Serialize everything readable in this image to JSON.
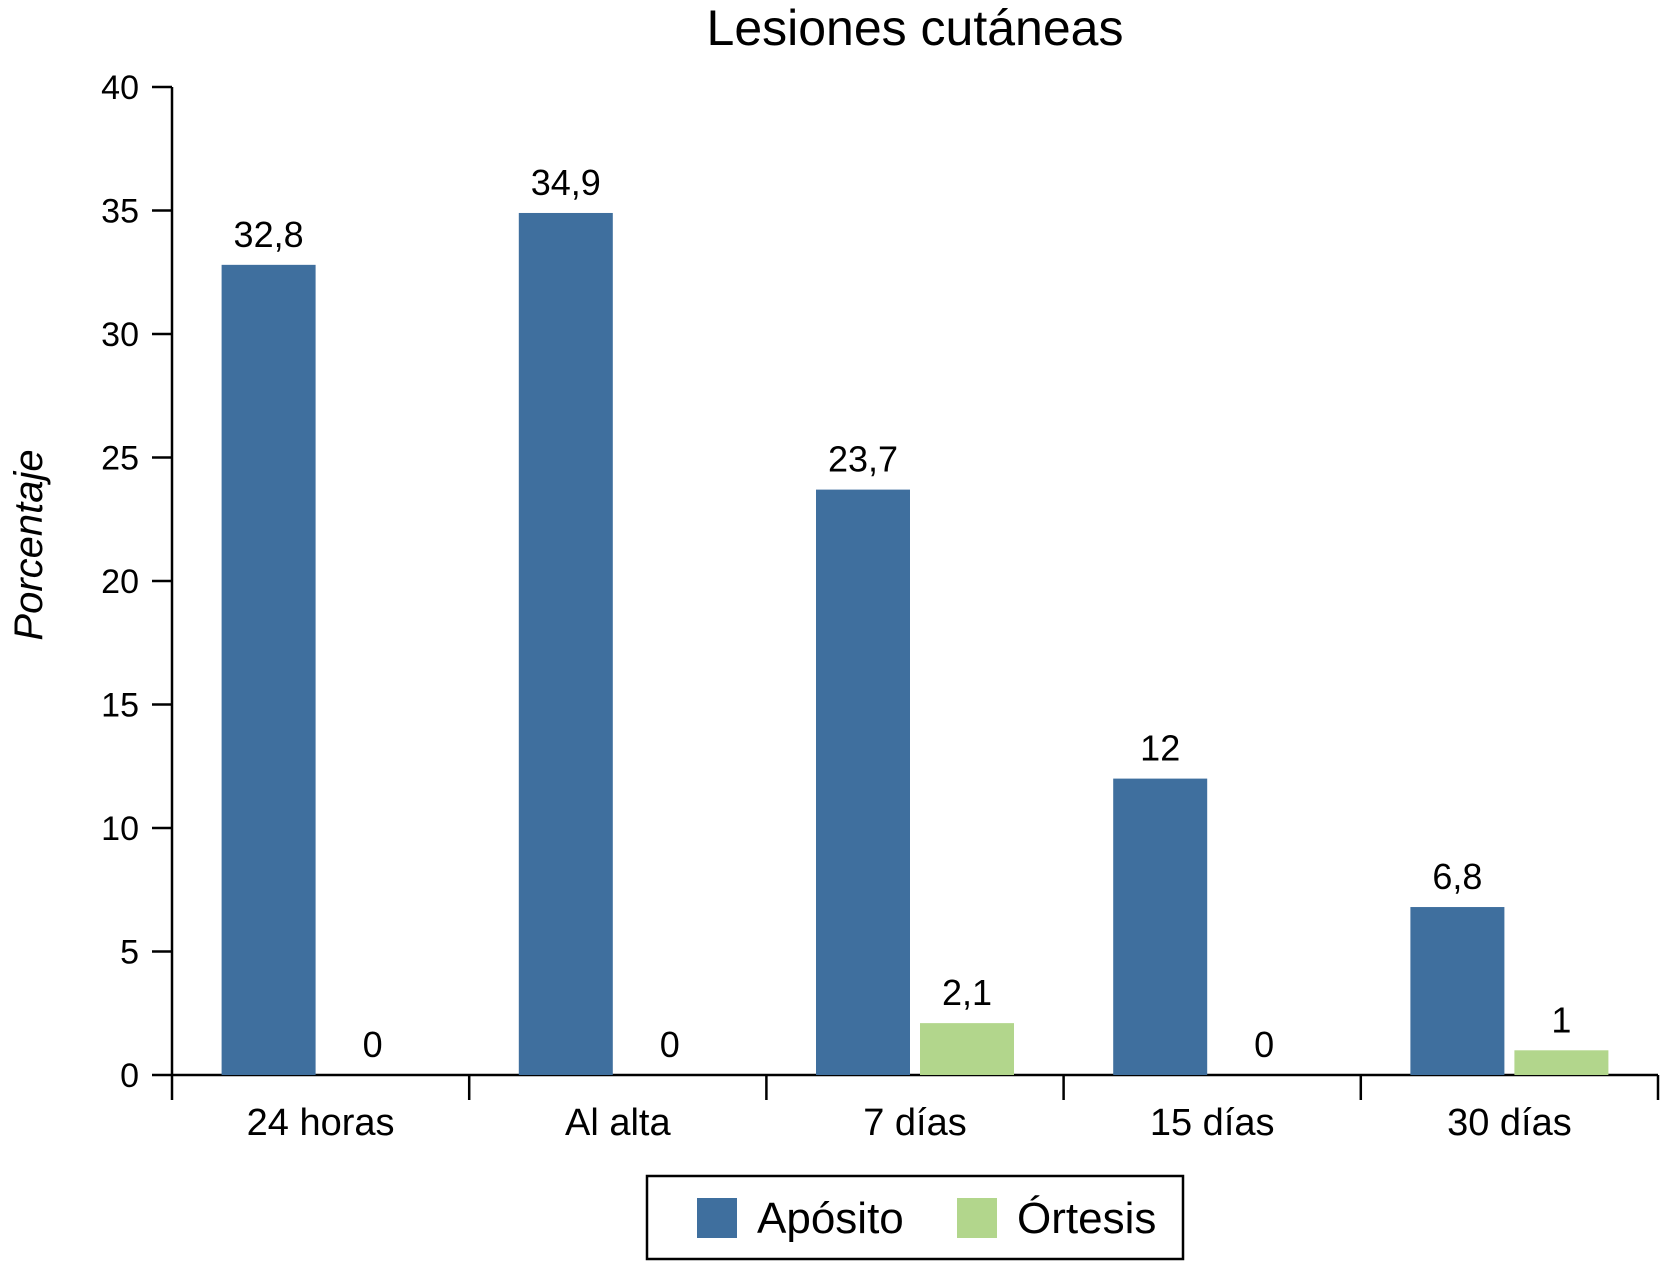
{
  "chart_data": {
    "type": "bar",
    "title": "Lesiones cutáneas",
    "xlabel": "",
    "ylabel": "Porcentaje",
    "ylim": [
      0,
      40
    ],
    "yticks": [
      0,
      5,
      10,
      15,
      20,
      25,
      30,
      35,
      40
    ],
    "categories": [
      "24 horas",
      "Al alta",
      "7 días",
      "15 días",
      "30 días"
    ],
    "series": [
      {
        "name": "Apósito",
        "color": "#3f6f9e",
        "values": [
          32.8,
          34.9,
          23.7,
          12,
          6.8
        ],
        "labels": [
          "32,8",
          "34,9",
          "23,7",
          "12",
          "6,8"
        ]
      },
      {
        "name": "Órtesis",
        "color": "#b2d68c",
        "values": [
          0,
          0,
          2.1,
          0,
          1
        ],
        "labels": [
          "0",
          "0",
          "2,1",
          "0",
          "1"
        ]
      }
    ],
    "grid": false,
    "legend_position": "bottom-center"
  }
}
